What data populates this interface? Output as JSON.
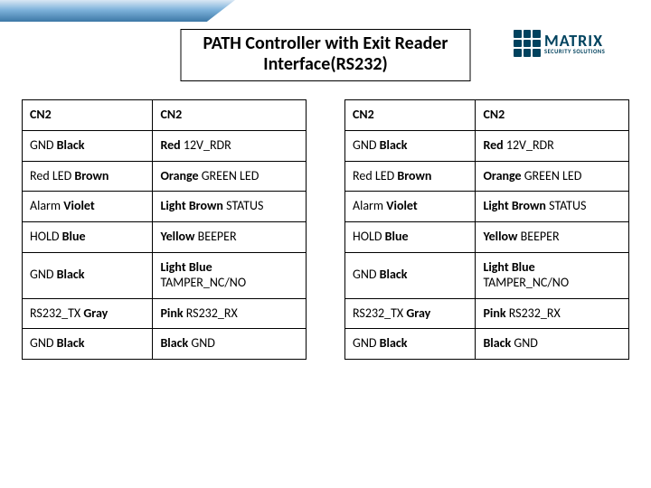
{
  "logo": {
    "brand": "MATRIX",
    "tagline": "SECURITY SOLUTIONS"
  },
  "title": {
    "line1": "PATH Controller with Exit Reader",
    "line2": "Interface(RS232)"
  },
  "leftTable": {
    "header": [
      "CN2",
      "CN2"
    ],
    "rows": [
      [
        "GND   <b>Black</b>",
        "<b>Red</b>  12V_RDR"
      ],
      [
        "Red LED <b>Brown</b>",
        "<b>Orange</b> GREEN LED"
      ],
      [
        "Alarm <b>Violet</b>",
        "<b>Light Brown</b> STATUS"
      ],
      [
        "HOLD <b>Blue</b>",
        "<b>Yellow</b>  BEEPER"
      ],
      [
        "GND <b>Black</b>",
        "<b>Light Blue</b> TAMPER_NC/NO"
      ],
      [
        "RS232_TX <b>Gray</b>",
        " <b>Pink</b> RS232_RX"
      ],
      [
        "GND <b>Black</b>",
        "<b>Black</b>  GND"
      ]
    ]
  },
  "rightTable": {
    "header": [
      "CN2",
      "CN2"
    ],
    "rows": [
      [
        "GND   <b>Black</b>",
        "<b>Red</b>  12V_RDR"
      ],
      [
        "Red LED <b>Brown</b>",
        "<b>Orange</b> GREEN LED"
      ],
      [
        "Alarm <b>Violet</b>",
        "<b>Light Brown</b> STATUS"
      ],
      [
        "HOLD <b>Blue</b>",
        "<b>Yellow</b>  BEEPER"
      ],
      [
        "GND <b>Black</b>",
        "<b>Light Blue</b> TAMPER_NC/NO"
      ],
      [
        "RS232_TX <b>Gray</b>",
        " <b>Pink</b> RS232_RX"
      ],
      [
        "GND <b>Black</b>",
        "<b>Black</b>  GND"
      ]
    ]
  }
}
